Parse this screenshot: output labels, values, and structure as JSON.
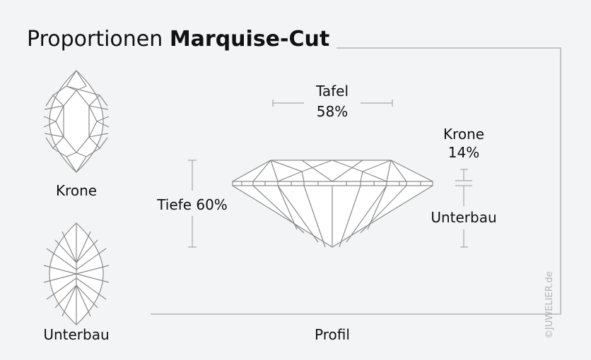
{
  "title": {
    "regular": "Proportionen",
    "bold": "Marquise-Cut"
  },
  "labels": {
    "crown_top_view": "Krone",
    "pavilion_top_view": "Unterbau",
    "table": "Tafel",
    "table_pct": "58%",
    "depth": "Tiefe 60%",
    "crown": "Krone",
    "crown_pct": "14%",
    "pavilion": "Unterbau",
    "profile": "Profil"
  },
  "watermark": "©JUWELIER.de",
  "colors": {
    "background": "#f3f4f6",
    "line": "#8a8a8a",
    "measure": "#b5b5b5",
    "frame": "#c4c4c4"
  }
}
